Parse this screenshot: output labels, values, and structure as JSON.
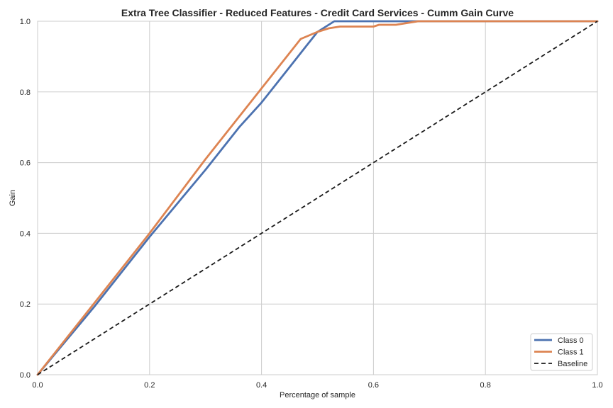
{
  "chart_data": {
    "type": "line",
    "title": "Extra Tree Classifier - Reduced Features - Credit Card Services - Cumm Gain Curve",
    "xlabel": "Percentage of sample",
    "ylabel": "Gain",
    "xlim": [
      0.0,
      1.0
    ],
    "ylim": [
      0.0,
      1.0
    ],
    "xticks": [
      "0.0",
      "0.2",
      "0.4",
      "0.6",
      "0.8",
      "1.0"
    ],
    "yticks": [
      "0.0",
      "0.2",
      "0.4",
      "0.6",
      "0.8",
      "1.0"
    ],
    "grid": true,
    "legend_position": "lower-right",
    "series": [
      {
        "name": "Class 0",
        "color": "#4c72b0",
        "style": "solid",
        "x": [
          0.0,
          0.1,
          0.2,
          0.3,
          0.33,
          0.36,
          0.4,
          0.45,
          0.48,
          0.5,
          0.52,
          0.53,
          0.6,
          0.8,
          1.0
        ],
        "y": [
          0.0,
          0.19,
          0.39,
          0.58,
          0.64,
          0.7,
          0.77,
          0.87,
          0.93,
          0.97,
          0.99,
          1.0,
          1.0,
          1.0,
          1.0
        ]
      },
      {
        "name": "Class 1",
        "color": "#dd8452",
        "style": "solid",
        "x": [
          0.0,
          0.1,
          0.2,
          0.3,
          0.4,
          0.47,
          0.5,
          0.52,
          0.54,
          0.6,
          0.61,
          0.64,
          0.68,
          0.75,
          1.0
        ],
        "y": [
          0.0,
          0.2,
          0.4,
          0.61,
          0.81,
          0.95,
          0.97,
          0.98,
          0.985,
          0.985,
          0.99,
          0.99,
          1.0,
          1.0,
          1.0
        ]
      },
      {
        "name": "Baseline",
        "color": "#1a1a1a",
        "style": "dashed",
        "x": [
          0.0,
          1.0
        ],
        "y": [
          0.0,
          1.0
        ]
      }
    ]
  }
}
